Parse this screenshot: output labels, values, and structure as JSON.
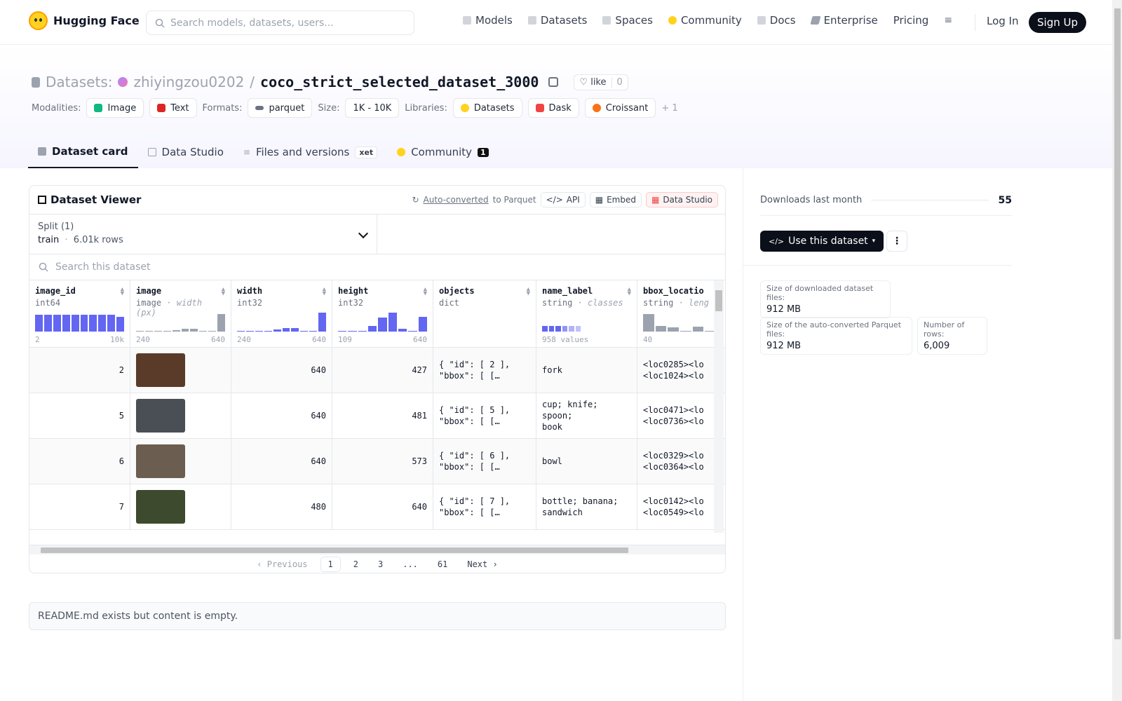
{
  "nav": {
    "brand": "Hugging Face",
    "search_placeholder": "Search models, datasets, users...",
    "items": [
      {
        "label": "Models",
        "icon": "models-icon",
        "color": "#9ca3af"
      },
      {
        "label": "Datasets",
        "icon": "datasets-icon",
        "color": "#9ca3af"
      },
      {
        "label": "Spaces",
        "icon": "spaces-icon",
        "color": "#9ca3af"
      },
      {
        "label": "Community",
        "icon": "community-icon",
        "color": "#FFD21E"
      },
      {
        "label": "Docs",
        "icon": "docs-icon",
        "color": "#9ca3af"
      },
      {
        "label": "Enterprise",
        "icon": "enterprise-icon",
        "color": "#6b7280"
      },
      {
        "label": "Pricing",
        "icon": "",
        "color": ""
      }
    ],
    "login": "Log In",
    "signup": "Sign Up"
  },
  "header": {
    "section": "Datasets:",
    "owner": "zhiyingzou0202",
    "separator": "/",
    "repo": "coco_strict_selected_dataset_3000",
    "like_label": "like",
    "like_count": "0",
    "modalities_label": "Modalities:",
    "modalities": [
      "Image",
      "Text"
    ],
    "formats_label": "Formats:",
    "format": "parquet",
    "size_label": "Size:",
    "size": "1K - 10K",
    "libraries_label": "Libraries:",
    "libraries": [
      "Datasets",
      "Dask",
      "Croissant"
    ],
    "libraries_more": "+ 1"
  },
  "tabs": [
    {
      "label": "Dataset card"
    },
    {
      "label": "Data Studio"
    },
    {
      "label": "Files and versions",
      "badge": "xet"
    },
    {
      "label": "Community",
      "badge": "1"
    }
  ],
  "viewer": {
    "title": "Dataset Viewer",
    "auto_converted": "Auto-converted",
    "to_parquet": "to Parquet",
    "api": "API",
    "embed": "Embed",
    "data_studio": "Data Studio",
    "split_label": "Split (1)",
    "split_name": "train",
    "split_dot": "·",
    "split_rows": "6.01k rows",
    "search_placeholder": "Search this dataset",
    "columns": [
      {
        "name": "image_id",
        "type": "int64",
        "sub": "",
        "min": "2",
        "max": "10k"
      },
      {
        "name": "image",
        "type": "image",
        "sub": "· width (px)",
        "min": "240",
        "max": "640"
      },
      {
        "name": "width",
        "type": "int32",
        "sub": "",
        "min": "240",
        "max": "640"
      },
      {
        "name": "height",
        "type": "int32",
        "sub": "",
        "min": "109",
        "max": "640"
      },
      {
        "name": "objects",
        "type": "dict",
        "sub": "",
        "min": "",
        "max": ""
      },
      {
        "name": "name_label",
        "type": "string",
        "sub": "· classes",
        "min": "958 values",
        "max": ""
      },
      {
        "name": "bbox_locatio",
        "type": "string",
        "sub": "· leng",
        "min": "40",
        "max": ""
      }
    ],
    "rows": [
      {
        "image_id": "2",
        "width": "640",
        "height": "427",
        "objects": "{ \"id\": [ 2 ],\n\"bbox\": [ […",
        "name_label": "fork",
        "bbox": "<loc0285><lo\n<loc1024><lo",
        "thumb": "#5a3b2a"
      },
      {
        "image_id": "5",
        "width": "640",
        "height": "481",
        "objects": "{ \"id\": [ 5 ],\n\"bbox\": [ […",
        "name_label": "cup; knife; spoon;\nbook",
        "bbox": "<loc0471><lo\n<loc0736><lo",
        "thumb": "#4a4f55"
      },
      {
        "image_id": "6",
        "width": "640",
        "height": "573",
        "objects": "{ \"id\": [ 6 ],\n\"bbox\": [ […",
        "name_label": "bowl",
        "bbox": "<loc0329><lo\n<loc0364><lo",
        "thumb": "#6b5d4f"
      },
      {
        "image_id": "7",
        "width": "480",
        "height": "640",
        "objects": "{ \"id\": [ 7 ],\n\"bbox\": [ […",
        "name_label": "bottle; banana;\nsandwich",
        "bbox": "<loc0142><lo\n<loc0549><lo",
        "thumb": "#3d4a2e"
      }
    ],
    "pager": {
      "prev": "Previous",
      "pages": [
        "1",
        "2",
        "3",
        "...",
        "61"
      ],
      "next": "Next"
    }
  },
  "readme_text": "README.md exists but content is empty.",
  "sidebar": {
    "downloads_label": "Downloads last month",
    "downloads_value": "55",
    "use_button": "Use this dataset",
    "stats": [
      {
        "label": "Size of downloaded dataset files:",
        "value": "912 MB"
      },
      {
        "label": "Size of the auto-converted Parquet files:",
        "value": "912 MB"
      },
      {
        "label": "Number of rows:",
        "value": "6,009"
      }
    ]
  }
}
